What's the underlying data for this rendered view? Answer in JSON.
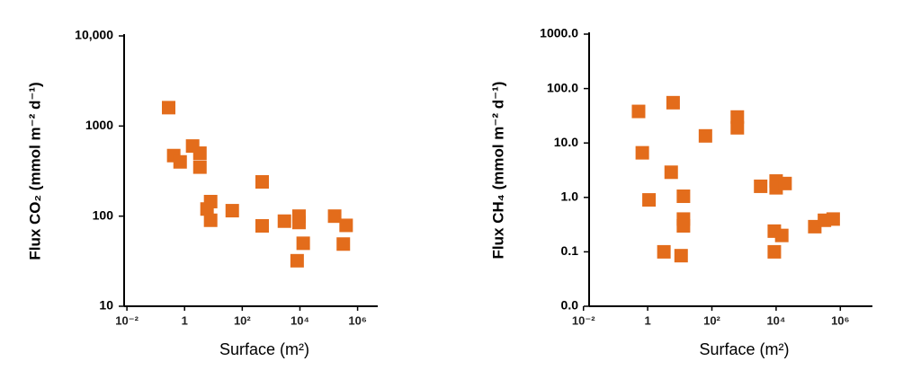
{
  "chart_data": [
    {
      "type": "scatter",
      "log_x": true,
      "log_y": true,
      "color": "#e36c1b",
      "x_label": "Surface (m²)",
      "y_label": "Flux CO₂ (mmol m⁻² d⁻¹)",
      "xlim": [
        0.008,
        5000000
      ],
      "ylim": [
        10,
        10000
      ],
      "xticks": [
        {
          "value": 0.01,
          "label": "10⁻²"
        },
        1,
        {
          "value": 100,
          "label": "10²"
        },
        {
          "value": 10000,
          "label": "10⁴"
        },
        {
          "value": 1000000,
          "label": "10⁶"
        }
      ],
      "yticks": [
        10,
        100,
        1000,
        {
          "value": 10000,
          "label": "10,000"
        }
      ],
      "x": [
        0.28,
        0.42,
        0.7,
        1.9,
        3.4,
        3.4,
        8,
        6,
        8,
        45,
        490,
        490,
        2900,
        9300,
        9300,
        8000,
        13000,
        160000,
        320000,
        400000
      ],
      "values": [
        1600,
        470,
        400,
        600,
        500,
        350,
        145,
        120,
        90,
        115,
        240,
        78,
        88,
        100,
        85,
        32,
        50,
        100,
        49,
        79
      ]
    },
    {
      "type": "scatter",
      "log_x": true,
      "log_y": true,
      "color": "#e36c1b",
      "x_label": "Surface (m²)",
      "y_label": "Flux CH₄ (mmol m⁻² d⁻¹)",
      "xlim": [
        0.015,
        10000000
      ],
      "ylim": [
        0.01,
        1000
      ],
      "xticks": [
        {
          "value": 0.01,
          "label": "10⁻²"
        },
        1,
        {
          "value": 100,
          "label": "10²"
        },
        {
          "value": 10000,
          "label": "10⁴"
        },
        {
          "value": 1000000,
          "label": "10⁶"
        }
      ],
      "yticks": [
        {
          "value": 0.01,
          "label": "0.0"
        },
        0.1,
        {
          "value": 1,
          "label": "1.0"
        },
        {
          "value": 10,
          "label": "10.0"
        },
        {
          "value": 100,
          "label": "100.0"
        },
        {
          "value": 1000,
          "label": "1000.0"
        }
      ],
      "x": [
        0.52,
        0.68,
        1.1,
        3.2,
        6.2,
        5.4,
        11,
        13,
        13,
        13,
        63,
        620,
        620,
        3300,
        10000,
        10000,
        19000,
        8800,
        8800,
        15000,
        160000,
        320000,
        600000
      ],
      "values": [
        38,
        6.6,
        0.9,
        0.1,
        55,
        2.9,
        0.085,
        1.05,
        0.4,
        0.3,
        13.5,
        30,
        19,
        1.6,
        2,
        1.5,
        1.8,
        0.24,
        0.1,
        0.2,
        0.29,
        0.38,
        0.4
      ]
    }
  ]
}
